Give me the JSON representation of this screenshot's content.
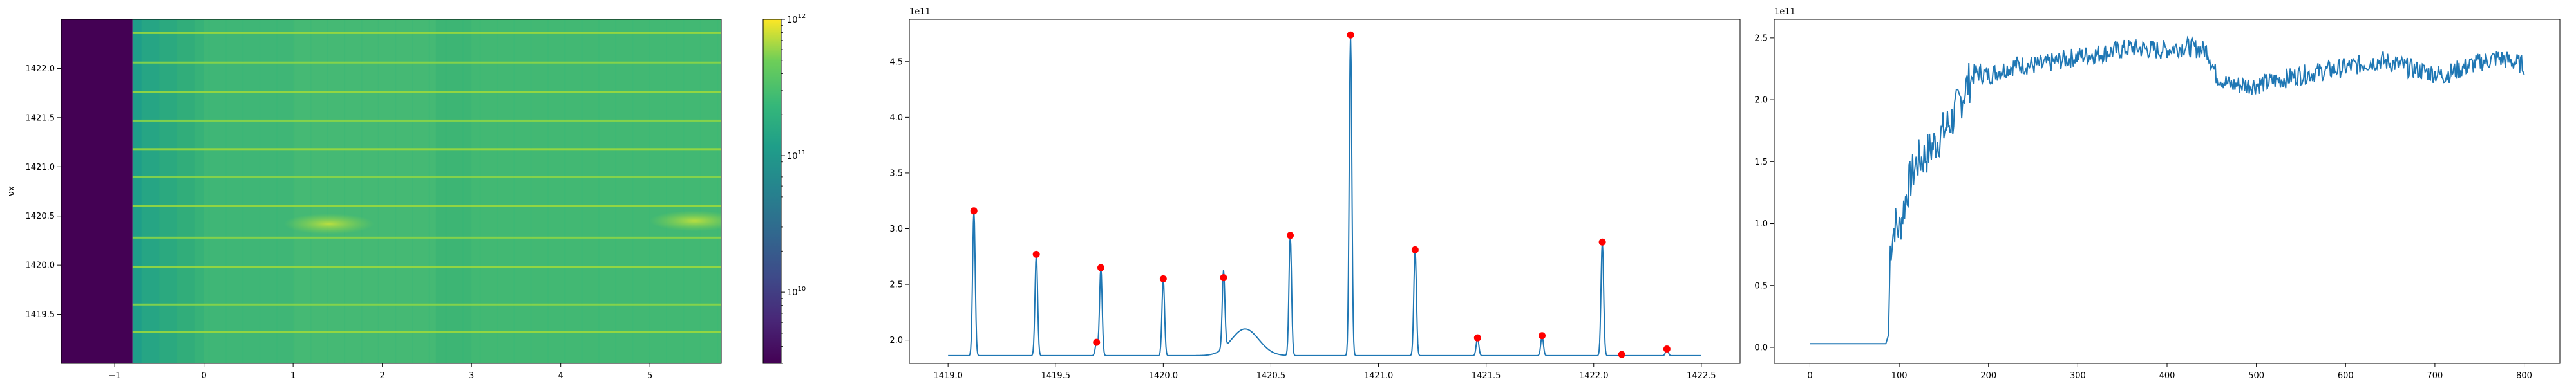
{
  "chart_data": [
    {
      "type": "heatmap",
      "title": "",
      "xlabel": "",
      "ylabel": "νx",
      "xlim": [
        -1.6,
        5.8
      ],
      "ylim": [
        1419.0,
        1422.5
      ],
      "xticks": [
        -1,
        0,
        1,
        2,
        3,
        4,
        5
      ],
      "xtick_labels": [
        "−1",
        "0",
        "1",
        "2",
        "3",
        "4",
        "5"
      ],
      "yticks": [
        1419.5,
        1420.0,
        1420.5,
        1421.0,
        1421.5,
        1422.0
      ],
      "ytick_labels": [
        "1419.5",
        "1420.0",
        "1420.5",
        "1421.0",
        "1421.5",
        "1422.0"
      ],
      "colormap": "viridis",
      "colorbar": {
        "scale": "log",
        "vmin": 3000000000.0,
        "vmax": 1000000000000.0,
        "ticks": [
          10000000000.0,
          100000000000.0,
          1000000000000.0
        ],
        "tick_labels": [
          {
            "base": "10",
            "exp": "10"
          },
          {
            "base": "10",
            "exp": "11"
          },
          {
            "base": "10",
            "exp": "12"
          }
        ]
      },
      "dark_band_x": [
        -1.6,
        -0.8
      ],
      "transition_x": [
        -0.8,
        0.0
      ],
      "bright_rows_y": [
        1419.32,
        1419.6,
        1419.98,
        1420.28,
        1420.6,
        1420.9,
        1421.18,
        1421.47,
        1421.76,
        1422.06,
        1422.36
      ],
      "blobs": [
        {
          "x": 1.4,
          "y": 1420.42
        },
        {
          "x": 5.5,
          "y": 1420.45
        }
      ]
    },
    {
      "type": "line",
      "title": "",
      "xlabel": "",
      "ylabel": "",
      "offset_text": "1e11",
      "xlim": [
        1418.82,
        1422.68
      ],
      "ylim": [
        1.79,
        4.88
      ],
      "xticks": [
        1419.0,
        1419.5,
        1420.0,
        1420.5,
        1421.0,
        1421.5,
        1422.0,
        1422.5
      ],
      "xtick_labels": [
        "1419.0",
        "1419.5",
        "1420.0",
        "1420.5",
        "1421.0",
        "1421.5",
        "1422.0",
        "1422.5"
      ],
      "yticks": [
        2.0,
        2.5,
        3.0,
        3.5,
        4.0,
        4.5
      ],
      "ytick_labels": [
        "2.0",
        "2.5",
        "3.0",
        "3.5",
        "4.0",
        "4.5"
      ],
      "line_color": "#1f77b4",
      "marker_color": "#ff0000",
      "baseline": 1.86,
      "x_range": [
        1419.0,
        1422.5
      ],
      "peaks": [
        {
          "x": 1419.12,
          "y": 3.16
        },
        {
          "x": 1419.41,
          "y": 2.77
        },
        {
          "x": 1419.69,
          "y": 1.98
        },
        {
          "x": 1419.71,
          "y": 2.65
        },
        {
          "x": 1420.0,
          "y": 2.55
        },
        {
          "x": 1420.28,
          "y": 2.56
        },
        {
          "x": 1420.59,
          "y": 2.94
        },
        {
          "x": 1420.87,
          "y": 4.74
        },
        {
          "x": 1421.17,
          "y": 2.81
        },
        {
          "x": 1421.46,
          "y": 2.02
        },
        {
          "x": 1421.76,
          "y": 2.04
        },
        {
          "x": 1422.04,
          "y": 2.88
        },
        {
          "x": 1422.13,
          "y": 1.87
        },
        {
          "x": 1422.34,
          "y": 1.92
        }
      ],
      "bump": {
        "x": 1420.38,
        "y": 2.1
      }
    },
    {
      "type": "line",
      "title": "",
      "xlabel": "",
      "ylabel": "",
      "offset_text": "1e11",
      "xlim": [
        -40,
        840
      ],
      "ylim": [
        -0.13,
        2.65
      ],
      "xticks": [
        0,
        100,
        200,
        300,
        400,
        500,
        600,
        700,
        800
      ],
      "xtick_labels": [
        "0",
        "100",
        "200",
        "300",
        "400",
        "500",
        "600",
        "700",
        "800"
      ],
      "yticks": [
        0.0,
        0.5,
        1.0,
        1.5,
        2.0,
        2.5
      ],
      "ytick_labels": [
        "0.0",
        "0.5",
        "1.0",
        "1.5",
        "2.0",
        "2.5"
      ],
      "line_color": "#1f77b4",
      "n_points": 800,
      "profile": [
        [
          0,
          0.03
        ],
        [
          85,
          0.03
        ],
        [
          88,
          0.1
        ],
        [
          90,
          0.8
        ],
        [
          95,
          1.0
        ],
        [
          100,
          0.95
        ],
        [
          110,
          1.3
        ],
        [
          120,
          1.5
        ],
        [
          130,
          1.55
        ],
        [
          145,
          1.7
        ],
        [
          160,
          1.85
        ],
        [
          175,
          2.1
        ],
        [
          185,
          2.22
        ],
        [
          200,
          2.2
        ],
        [
          230,
          2.28
        ],
        [
          260,
          2.28
        ],
        [
          300,
          2.35
        ],
        [
          330,
          2.38
        ],
        [
          360,
          2.42
        ],
        [
          390,
          2.4
        ],
        [
          420,
          2.43
        ],
        [
          445,
          2.4
        ],
        [
          455,
          2.2
        ],
        [
          470,
          2.12
        ],
        [
          500,
          2.12
        ],
        [
          550,
          2.2
        ],
        [
          600,
          2.26
        ],
        [
          640,
          2.32
        ],
        [
          680,
          2.24
        ],
        [
          710,
          2.2
        ],
        [
          740,
          2.28
        ],
        [
          770,
          2.34
        ],
        [
          800,
          2.28
        ]
      ],
      "noise_amplitude": 0.08
    }
  ]
}
